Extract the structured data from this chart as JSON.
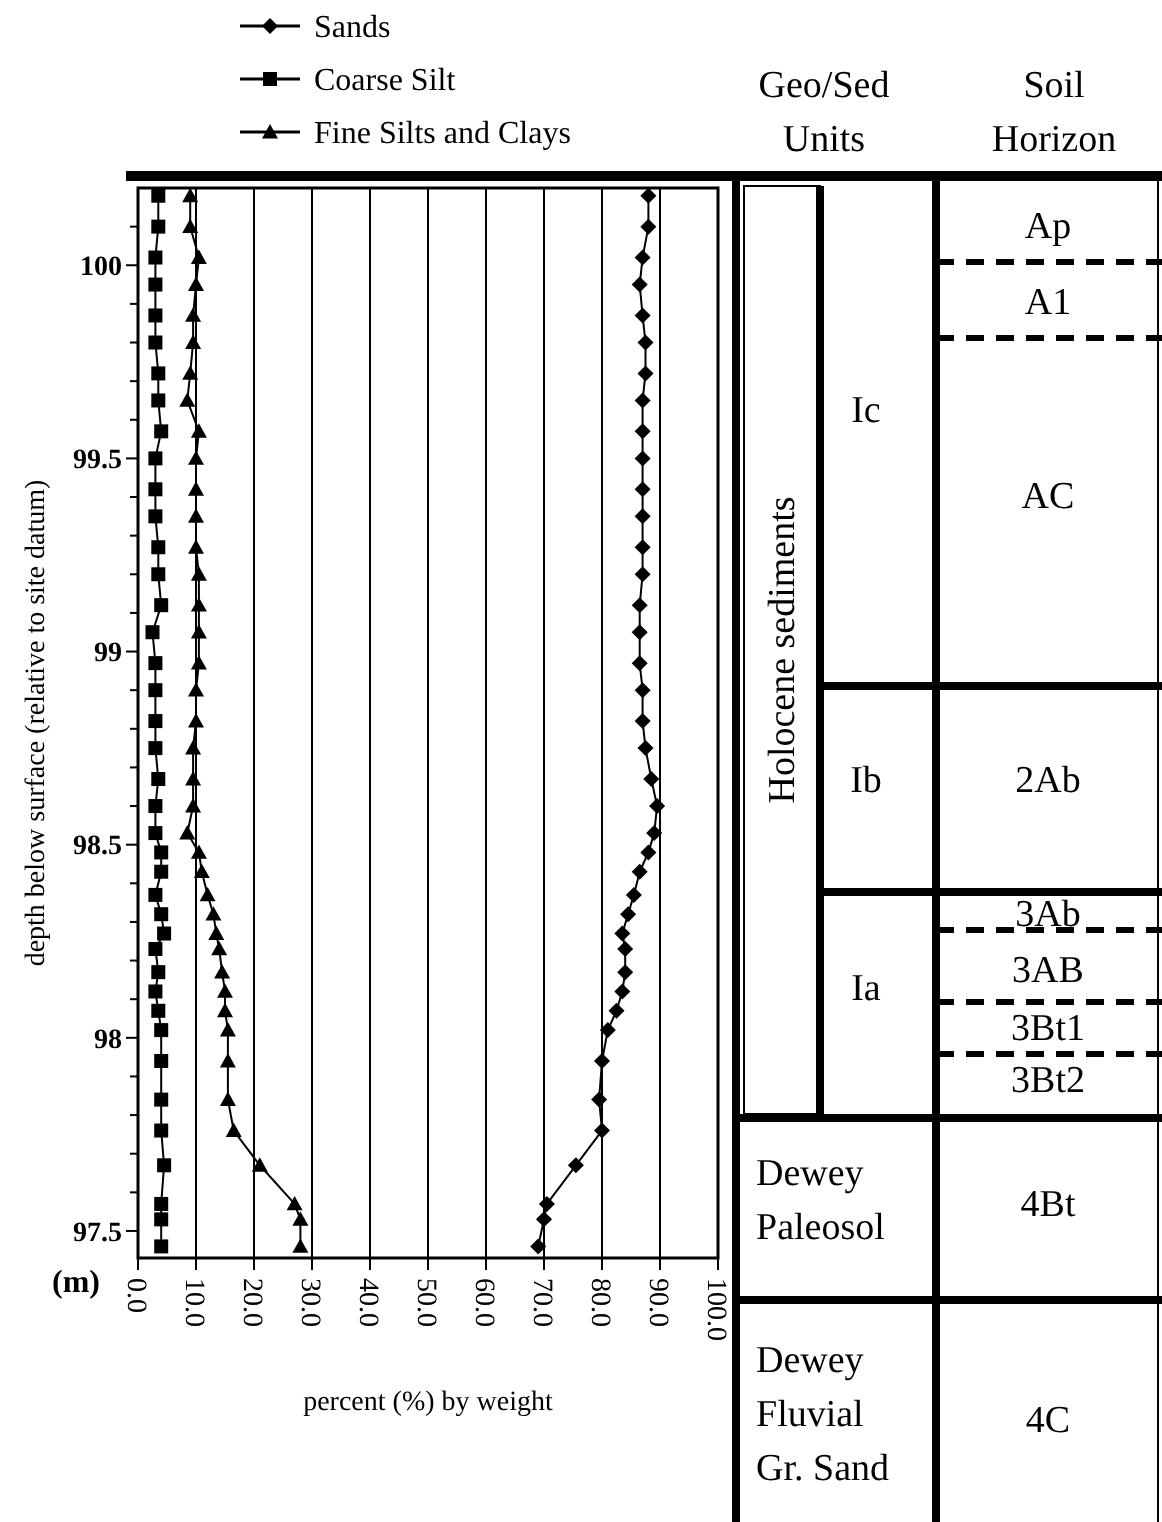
{
  "chart_data": [
    {
      "type": "line",
      "xlabel": "percent (%) by weight",
      "ylabel": "depth below surface (relative to site datum)",
      "annotations": [
        "(m)"
      ],
      "xlim": [
        0,
        100
      ],
      "ylim": [
        97.43,
        100.2
      ],
      "xticks": [
        {
          "value": 0,
          "label": "0.0"
        },
        {
          "value": 10,
          "label": "10.0"
        },
        {
          "value": 20,
          "label": "20.0"
        },
        {
          "value": 30,
          "label": "30.0"
        },
        {
          "value": 40,
          "label": "40.0"
        },
        {
          "value": 50,
          "label": "50.0"
        },
        {
          "value": 60,
          "label": "60.0"
        },
        {
          "value": 70,
          "label": "70.0"
        },
        {
          "value": 80,
          "label": "80.0"
        },
        {
          "value": 90,
          "label": "90.0"
        },
        {
          "value": 100,
          "label": "100.0"
        }
      ],
      "yticks": [
        97.5,
        {
          "value": 97.6,
          "label": null
        },
        {
          "value": 97.7,
          "label": null
        },
        {
          "value": 97.8,
          "label": null
        },
        {
          "value": 97.9,
          "label": null
        },
        98,
        {
          "value": 98.1,
          "label": null
        },
        {
          "value": 98.2,
          "label": null
        },
        {
          "value": 98.3,
          "label": null
        },
        {
          "value": 98.4,
          "label": null
        },
        98.5,
        {
          "value": 98.6,
          "label": null
        },
        {
          "value": 98.7,
          "label": null
        },
        {
          "value": 98.8,
          "label": null
        },
        {
          "value": 98.9,
          "label": null
        },
        99,
        {
          "value": 99.1,
          "label": null
        },
        {
          "value": 99.2,
          "label": null
        },
        {
          "value": 99.3,
          "label": null
        },
        {
          "value": 99.4,
          "label": null
        },
        99.5,
        {
          "value": 99.6,
          "label": null
        },
        {
          "value": 99.7,
          "label": null
        },
        {
          "value": 99.8,
          "label": null
        },
        {
          "value": 99.9,
          "label": null
        },
        100,
        {
          "value": 100.1,
          "label": null
        }
      ],
      "grid": "x",
      "legend": "top",
      "line_style": "solid",
      "series": [
        {
          "name": "Sands",
          "color": "#000000",
          "marker": "diamond",
          "x": [
            88,
            88,
            87,
            86.5,
            87,
            87.5,
            87.5,
            87,
            87,
            87,
            87,
            87,
            87,
            87,
            86.5,
            86.5,
            86.5,
            87,
            87,
            87.5,
            88.5,
            89.5,
            89,
            88,
            86.5,
            85.5,
            84.5,
            83.5,
            84,
            84,
            83.5,
            82.5,
            81,
            80,
            79.5,
            80,
            75.5,
            70.5,
            70,
            69
          ],
          "values": [
            100.18,
            100.1,
            100.02,
            99.95,
            99.87,
            99.8,
            99.72,
            99.65,
            99.57,
            99.5,
            99.42,
            99.35,
            99.27,
            99.2,
            99.12,
            99.05,
            98.97,
            98.9,
            98.82,
            98.75,
            98.67,
            98.6,
            98.53,
            98.48,
            98.43,
            98.37,
            98.32,
            98.27,
            98.23,
            98.17,
            98.12,
            98.07,
            98.02,
            97.94,
            97.84,
            97.76,
            97.67,
            97.57,
            97.53,
            97.46
          ]
        },
        {
          "name": "Coarse Silt",
          "color": "#000000",
          "marker": "square",
          "x": [
            3.5,
            3.5,
            3,
            3,
            3,
            3,
            3.5,
            3.5,
            4,
            3,
            3,
            3,
            3.5,
            3.5,
            4,
            2.5,
            3,
            3,
            3,
            3,
            3.5,
            3,
            3,
            4,
            4,
            3,
            4,
            4.5,
            3,
            3.5,
            3,
            3.5,
            4,
            4,
            4,
            4,
            4.5,
            4,
            4,
            4
          ],
          "values": [
            100.18,
            100.1,
            100.02,
            99.95,
            99.87,
            99.8,
            99.72,
            99.65,
            99.57,
            99.5,
            99.42,
            99.35,
            99.27,
            99.2,
            99.12,
            99.05,
            98.97,
            98.9,
            98.82,
            98.75,
            98.67,
            98.6,
            98.53,
            98.48,
            98.43,
            98.37,
            98.32,
            98.27,
            98.23,
            98.17,
            98.12,
            98.07,
            98.02,
            97.94,
            97.84,
            97.76,
            97.67,
            97.57,
            97.53,
            97.46
          ]
        },
        {
          "name": "Fine Silts and Clays",
          "color": "#000000",
          "marker": "triangle",
          "x": [
            9,
            9,
            10.5,
            10,
            9.5,
            9.5,
            9,
            8.5,
            10.5,
            10,
            10,
            10,
            10,
            10.5,
            10.5,
            10.5,
            10.5,
            10,
            10,
            9.5,
            9.5,
            9.5,
            8.5,
            10.5,
            11,
            12,
            13,
            13.5,
            14,
            14.5,
            15,
            15,
            15.5,
            15.5,
            15.5,
            16.5,
            21,
            27,
            28,
            28
          ],
          "values": [
            100.18,
            100.1,
            100.02,
            99.95,
            99.87,
            99.8,
            99.72,
            99.65,
            99.57,
            99.5,
            99.42,
            99.35,
            99.27,
            99.2,
            99.12,
            99.05,
            98.97,
            98.9,
            98.82,
            98.75,
            98.67,
            98.6,
            98.53,
            98.48,
            98.43,
            98.37,
            98.32,
            98.27,
            98.23,
            98.17,
            98.12,
            98.07,
            98.02,
            97.94,
            97.84,
            97.76,
            97.67,
            97.57,
            97.53,
            97.46
          ]
        }
      ]
    },
    {
      "type": "other",
      "annotations": [
        "Geo/Sed\nUnits",
        "Soil\nHorizon",
        "Holocene sediments",
        "Ic",
        "Ib",
        "Ia",
        "Dewey\nPaleosol",
        "Dewey\nFluvial\nGr. Sand",
        "Ap",
        "A1",
        "AC",
        "2Ab",
        "3Ab",
        "3AB",
        "3Bt1",
        "3Bt2",
        "4Bt",
        "4C"
      ]
    }
  ]
}
